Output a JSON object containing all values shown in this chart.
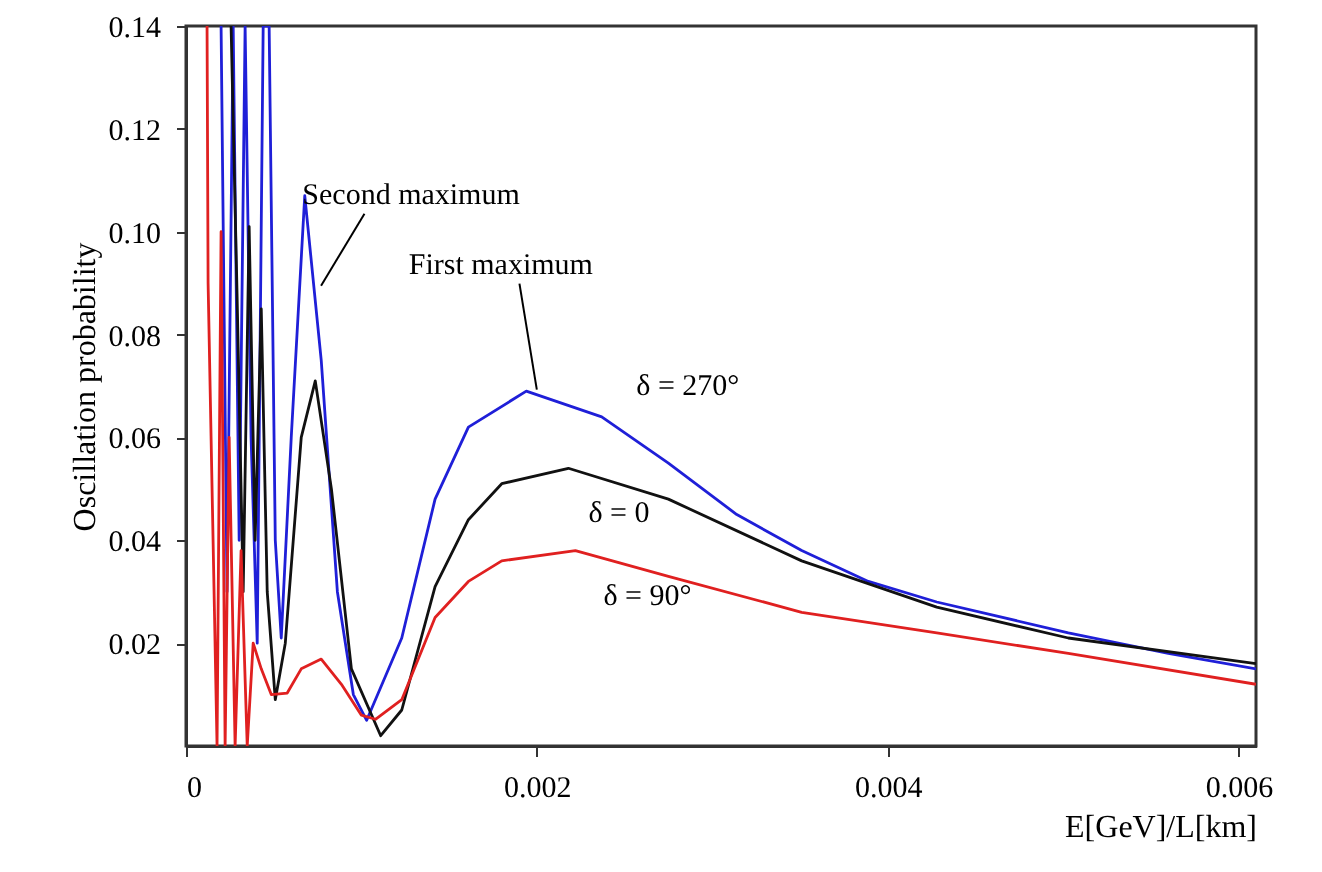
{
  "chart_data": {
    "type": "line",
    "xlabel": "E[GeV]/L[km]",
    "ylabel": "Oscillation probability",
    "xlim": [
      0,
      0.0061
    ],
    "xticks": [
      0,
      0.002,
      0.004,
      0.006
    ],
    "ylim": [
      0,
      0.14
    ],
    "yticks": [
      0.02,
      0.04,
      0.06,
      0.08,
      {
        "value": 0.1,
        "label": "0.10"
      },
      0.12,
      0.14
    ],
    "grid": false,
    "marker": "none",
    "line_style": "solid",
    "series": [
      {
        "name": "δ = 270°",
        "color": "#1f1fd8",
        "x": [
          0.0002,
          0.000234,
          0.000269,
          0.000303,
          0.000337,
          0.000371,
          0.000406,
          0.00044,
          0.000474,
          0.000509,
          0.000543,
          0.0006,
          0.000677,
          0.000771,
          0.000863,
          0.000954,
          0.00103,
          0.00123,
          0.00142,
          0.00161,
          0.00194,
          0.00237,
          0.00275,
          0.00314,
          0.00351,
          0.00389,
          0.00428,
          0.00503,
          0.0056,
          0.0061
        ],
        "values": [
          0.14,
          0.03,
          0.14,
          0.04,
          0.14,
          0.06,
          0.02,
          0.14,
          0.14,
          0.04,
          0.021,
          0.06,
          0.107,
          0.075,
          0.03,
          0.01,
          0.005,
          0.021,
          0.048,
          0.062,
          0.069,
          0.064,
          0.055,
          0.045,
          0.038,
          0.032,
          0.028,
          0.022,
          0.018,
          0.015
        ]
      },
      {
        "name": "δ = 0",
        "color": "#111111",
        "x": [
          0.000257,
          0.000291,
          0.000326,
          0.00036,
          0.000394,
          0.000429,
          0.000463,
          0.000509,
          0.000566,
          0.000657,
          0.000737,
          0.000829,
          0.000943,
          0.00111,
          0.00123,
          0.00142,
          0.00161,
          0.0018,
          0.00218,
          0.00275,
          0.00351,
          0.00428,
          0.00503,
          0.0061
        ],
        "values": [
          0.14,
          0.088,
          0.03,
          0.101,
          0.04,
          0.085,
          0.03,
          0.009,
          0.02,
          0.06,
          0.071,
          0.05,
          0.015,
          0.002,
          0.007,
          0.031,
          0.044,
          0.051,
          0.054,
          0.048,
          0.036,
          0.027,
          0.021,
          0.016
        ]
      },
      {
        "name": "δ = 90°",
        "color": "#e02020",
        "x": [
          0.00012,
          0.000126,
          0.000177,
          0.0002,
          0.000223,
          0.000246,
          0.00028,
          0.000314,
          0.000349,
          0.000383,
          0.000429,
          0.000486,
          0.000577,
          0.000657,
          0.000771,
          0.000886,
          0.001,
          0.00108,
          0.00123,
          0.00142,
          0.00161,
          0.0018,
          0.00222,
          0.00275,
          0.00351,
          0.00428,
          0.00503,
          0.0061
        ],
        "values": [
          0.14,
          0.09,
          0.0,
          0.1,
          0.0,
          0.06,
          0.0,
          0.038,
          0.0,
          0.02,
          0.015,
          0.01,
          0.0103,
          0.015,
          0.0169,
          0.012,
          0.006,
          0.0052,
          0.009,
          0.025,
          0.032,
          0.036,
          0.038,
          0.033,
          0.026,
          0.022,
          0.018,
          0.012
        ]
      }
    ],
    "annotations": [
      {
        "text": "Second maximum",
        "x": 0.00077,
        "y": 0.0895
      },
      {
        "text": "First maximum",
        "x": 0.002,
        "y": 0.0693
      }
    ]
  }
}
